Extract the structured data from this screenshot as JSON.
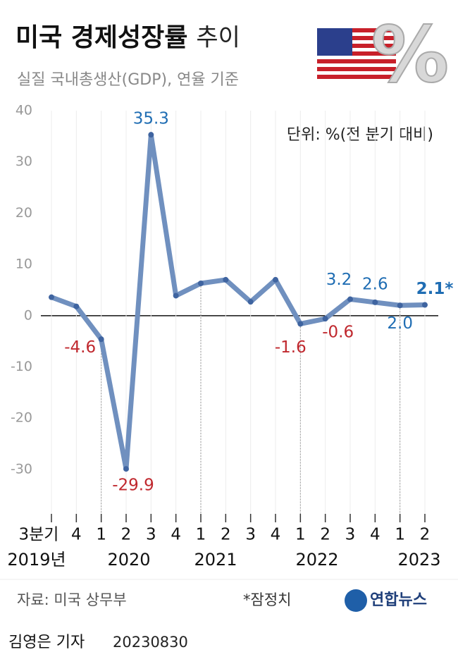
{
  "chart_data": {
    "type": "line",
    "title": "미국 경제성장률",
    "title_suffix": "추이",
    "subtitle": "실질 국내총생산(GDP), 연율 기준",
    "unit": "단위: %(전 분기 대비)",
    "categories": [
      "3분기",
      "4",
      "1",
      "2",
      "3",
      "4",
      "1",
      "2",
      "3",
      "4",
      "1",
      "2",
      "3",
      "4",
      "1",
      "2"
    ],
    "years": [
      "2019년",
      "2020",
      "2021",
      "2022",
      "2023"
    ],
    "values": [
      3.6,
      1.8,
      -4.6,
      -29.9,
      35.3,
      3.9,
      6.3,
      7.0,
      2.7,
      7.0,
      -1.6,
      -0.6,
      3.2,
      2.6,
      2.0,
      2.1
    ],
    "value_labels": [
      null,
      null,
      "-4.6",
      "-29.9",
      "35.3",
      null,
      null,
      null,
      null,
      null,
      "-1.6",
      "-0.6",
      "3.2",
      "2.6",
      "2.0",
      "2.1*"
    ],
    "color": "#7090bf",
    "positive_label_color": "#1f6db3",
    "negative_label_color": "#c0282e",
    "ylim": [
      -39.5,
      42
    ],
    "yticks": [
      -30,
      -20,
      -10,
      0,
      10,
      20,
      30,
      40
    ],
    "grid": true,
    "source": "자료: 미국 상무부",
    "note": "*잠정치",
    "logo": "연합뉴스",
    "byline": "김영은 기자",
    "date": "20230830"
  }
}
